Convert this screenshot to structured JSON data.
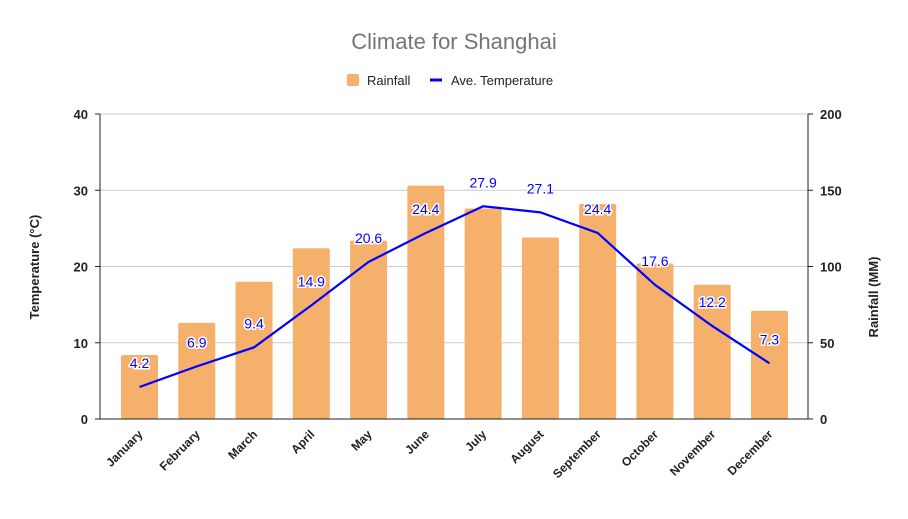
{
  "chart_data": {
    "type": "bar+line",
    "title": "Climate for Shanghai",
    "categories": [
      "January",
      "February",
      "March",
      "April",
      "May",
      "June",
      "July",
      "August",
      "September",
      "October",
      "November",
      "December"
    ],
    "series": [
      {
        "name": "Rainfall",
        "type": "bar",
        "axis": "right",
        "color": "#f5b06b",
        "values": [
          42,
          63,
          90,
          112,
          117,
          153,
          138,
          119,
          141,
          102,
          88,
          71
        ]
      },
      {
        "name": "Ave. Temperature",
        "type": "line",
        "axis": "left",
        "color": "#0000ff",
        "values": [
          4.2,
          6.9,
          9.4,
          14.9,
          20.6,
          24.4,
          27.9,
          27.1,
          24.4,
          17.6,
          12.2,
          7.3
        ],
        "data_labels": [
          "4.2",
          "6.9",
          "9.4",
          "14.9",
          "20.6",
          "24.4",
          "27.9",
          "27.1",
          "24.4",
          "17.6",
          "12.2",
          "7.3"
        ]
      }
    ],
    "y_left": {
      "label": "Temperature (°C)",
      "range": [
        0,
        40
      ],
      "ticks": [
        "0",
        "10",
        "20",
        "30",
        "40"
      ]
    },
    "y_right": {
      "label": "Rainfall (MM)",
      "range": [
        0,
        200
      ],
      "ticks": [
        "0",
        "50",
        "100",
        "150",
        "200"
      ]
    },
    "grid": true,
    "legend_position": "top"
  }
}
